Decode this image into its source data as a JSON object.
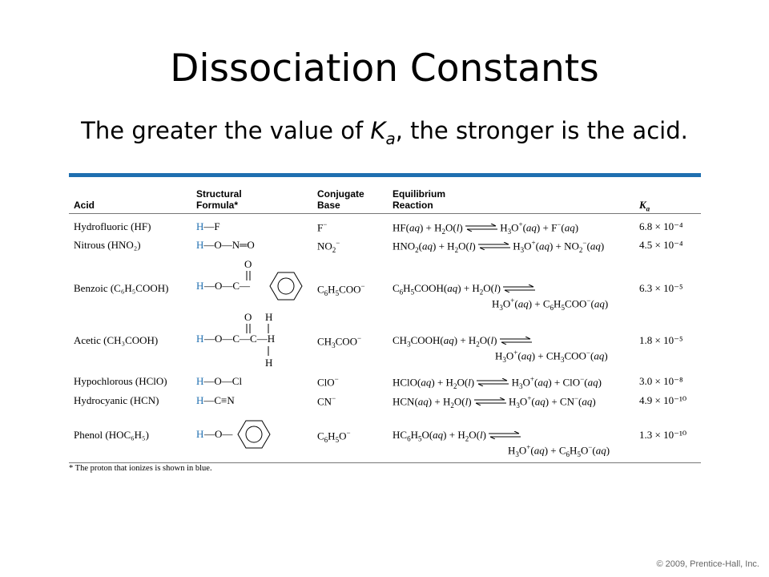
{
  "slide": {
    "title": "Dissociation Constants",
    "subtitle_pre": "The greater the value of ",
    "subtitle_k": "K",
    "subtitle_sub": "a",
    "subtitle_post": ", the stronger is the acid."
  },
  "table": {
    "headers": {
      "acid": "Acid",
      "structural_1": "Structural",
      "structural_2": "Formula*",
      "conj_1": "Conjugate",
      "conj_2": "Base",
      "eq_1": "Equilibrium",
      "eq_2": "Reaction",
      "ka": "K",
      "ka_sub": "a"
    },
    "rows": [
      {
        "acid": "Hydrofluoric (HF)",
        "ka": "6.8 × 10⁻⁴"
      },
      {
        "acid": "Nitrous (HNO₂)",
        "ka": "4.5 × 10⁻⁴"
      },
      {
        "acid": "Benzoic (C₆H₅COOH)",
        "ka": "6.3 × 10⁻⁵"
      },
      {
        "acid": "Acetic (CH₃COOH)",
        "ka": "1.8 × 10⁻⁵"
      },
      {
        "acid": "Hypochlorous (HClO)",
        "ka": "3.0 × 10⁻⁸"
      },
      {
        "acid": "Hydrocyanic (HCN)",
        "ka": "4.9 × 10⁻¹⁰"
      },
      {
        "acid": "Phenol (HOC₆H₅)",
        "ka": "1.3 × 10⁻¹⁰"
      }
    ],
    "footnote": "* The proton that ionizes is shown in blue."
  },
  "copyright": "© 2009, Prentice-Hall, Inc.",
  "colors": {
    "accent": "#1f6fb0"
  }
}
